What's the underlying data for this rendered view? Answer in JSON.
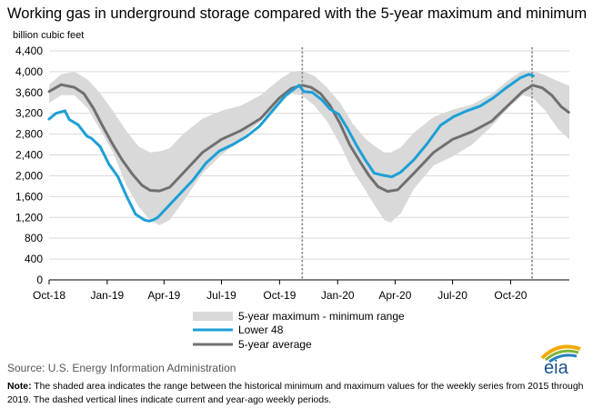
{
  "chart_data": {
    "type": "area",
    "title": "Working gas in underground storage compared with the 5-year maximum and minimum",
    "ylabel": "billion cubic feet",
    "xlabel": "",
    "ylim": [
      0,
      4400
    ],
    "yticks": [
      0,
      400,
      800,
      1200,
      1600,
      2000,
      2400,
      2800,
      3200,
      3600,
      4000,
      4400
    ],
    "yticklabels": [
      "0",
      "400",
      "800",
      "1,200",
      "1,600",
      "2,000",
      "2,400",
      "2,800",
      "3,200",
      "3,600",
      "4,000",
      "4,400"
    ],
    "xrange": [
      "2018-10-01",
      "2021-01-02"
    ],
    "xticks": [
      "2018-10-01",
      "2019-01-01",
      "2019-04-01",
      "2019-07-01",
      "2019-10-01",
      "2020-01-01",
      "2020-04-01",
      "2020-07-01",
      "2020-10-01"
    ],
    "xticklabels": [
      "Oct-18",
      "Jan-19",
      "Apr-19",
      "Jul-19",
      "Oct-19",
      "Jan-20",
      "Apr-20",
      "Jul-20",
      "Oct-20"
    ],
    "grid": "horizontal",
    "legend_position": "bottom-center",
    "vlines": [
      "2019-11-06",
      "2020-11-04"
    ],
    "colors": {
      "range": "#d9d9d9",
      "lower48": "#1d9fd6",
      "avg": "#707070",
      "vline": "#8a8a8a"
    },
    "range_band": {
      "name": "5-year maximum - minimum range",
      "x": [
        "2018-10-01",
        "2018-10-20",
        "2018-11-10",
        "2018-12-01",
        "2018-12-20",
        "2019-01-10",
        "2019-02-01",
        "2019-02-20",
        "2019-03-10",
        "2019-03-25",
        "2019-04-10",
        "2019-05-01",
        "2019-06-01",
        "2019-07-01",
        "2019-08-01",
        "2019-09-01",
        "2019-10-01",
        "2019-10-20",
        "2019-11-05",
        "2019-11-25",
        "2019-12-15",
        "2020-01-05",
        "2020-01-25",
        "2020-02-15",
        "2020-03-01",
        "2020-03-15",
        "2020-03-25",
        "2020-04-10",
        "2020-05-01",
        "2020-06-01",
        "2020-07-01",
        "2020-08-01",
        "2020-09-01",
        "2020-10-01",
        "2020-10-20",
        "2020-11-05",
        "2020-11-25",
        "2020-12-15",
        "2021-01-02"
      ],
      "max": [
        3750,
        3950,
        4000,
        3850,
        3600,
        3250,
        2850,
        2560,
        2450,
        2470,
        2530,
        2800,
        3100,
        3250,
        3350,
        3550,
        3850,
        4000,
        4020,
        3920,
        3700,
        3400,
        3000,
        2700,
        2560,
        2450,
        2450,
        2550,
        2830,
        3130,
        3270,
        3370,
        3570,
        3870,
        4020,
        4020,
        3930,
        3820,
        3730
      ],
      "min": [
        3400,
        3550,
        3550,
        3300,
        2900,
        2450,
        1800,
        1400,
        1150,
        1050,
        1150,
        1500,
        2050,
        2400,
        2700,
        3050,
        3400,
        3580,
        3550,
        3350,
        3050,
        2600,
        2100,
        1700,
        1400,
        1150,
        1100,
        1280,
        1750,
        2200,
        2370,
        2600,
        2950,
        3350,
        3550,
        3500,
        3250,
        2900,
        2700
      ]
    },
    "series": [
      {
        "name": "Lower 48",
        "x": [
          "2018-10-01",
          "2018-10-12",
          "2018-10-26",
          "2018-11-02",
          "2018-11-16",
          "2018-11-30",
          "2018-12-07",
          "2018-12-21",
          "2019-01-04",
          "2019-01-18",
          "2019-02-01",
          "2019-02-15",
          "2019-03-01",
          "2019-03-08",
          "2019-03-15",
          "2019-03-22",
          "2019-03-29",
          "2019-04-12",
          "2019-04-26",
          "2019-05-17",
          "2019-06-07",
          "2019-06-28",
          "2019-07-19",
          "2019-08-09",
          "2019-08-30",
          "2019-09-20",
          "2019-10-11",
          "2019-11-01",
          "2019-11-08",
          "2019-11-22",
          "2019-12-06",
          "2019-12-20",
          "2020-01-03",
          "2020-01-17",
          "2020-01-31",
          "2020-02-14",
          "2020-02-28",
          "2020-03-13",
          "2020-03-27",
          "2020-04-10",
          "2020-05-01",
          "2020-05-22",
          "2020-06-12",
          "2020-07-03",
          "2020-07-24",
          "2020-08-14",
          "2020-09-04",
          "2020-09-25",
          "2020-10-16",
          "2020-10-30",
          "2020-11-06"
        ],
        "y": [
          3090,
          3200,
          3250,
          3080,
          2980,
          2760,
          2720,
          2560,
          2220,
          1980,
          1600,
          1260,
          1150,
          1130,
          1150,
          1200,
          1290,
          1470,
          1650,
          1920,
          2250,
          2480,
          2600,
          2750,
          2950,
          3250,
          3550,
          3740,
          3620,
          3600,
          3470,
          3280,
          3180,
          2900,
          2580,
          2300,
          2050,
          2010,
          1980,
          2070,
          2310,
          2620,
          2970,
          3140,
          3250,
          3340,
          3500,
          3700,
          3880,
          3950,
          3920
        ]
      },
      {
        "name": "5-year average",
        "x": [
          "2018-10-01",
          "2018-10-20",
          "2018-11-10",
          "2018-11-25",
          "2018-12-10",
          "2018-12-25",
          "2019-01-10",
          "2019-01-25",
          "2019-02-10",
          "2019-02-25",
          "2019-03-10",
          "2019-03-25",
          "2019-04-10",
          "2019-05-01",
          "2019-06-01",
          "2019-07-01",
          "2019-08-01",
          "2019-09-01",
          "2019-10-01",
          "2019-10-20",
          "2019-11-06",
          "2019-11-20",
          "2019-12-05",
          "2019-12-20",
          "2020-01-05",
          "2020-01-20",
          "2020-02-05",
          "2020-02-20",
          "2020-03-05",
          "2020-03-20",
          "2020-04-05",
          "2020-05-01",
          "2020-06-01",
          "2020-07-01",
          "2020-08-01",
          "2020-09-01",
          "2020-10-01",
          "2020-10-20",
          "2020-11-05",
          "2020-11-20",
          "2020-12-05",
          "2020-12-20",
          "2021-01-01"
        ],
        "y": [
          3620,
          3750,
          3700,
          3580,
          3300,
          2950,
          2600,
          2300,
          2030,
          1820,
          1720,
          1710,
          1780,
          2050,
          2450,
          2700,
          2870,
          3100,
          3500,
          3680,
          3740,
          3700,
          3580,
          3350,
          3000,
          2600,
          2280,
          2000,
          1790,
          1700,
          1730,
          2050,
          2450,
          2700,
          2850,
          3050,
          3400,
          3620,
          3740,
          3690,
          3550,
          3330,
          3220
        ]
      }
    ],
    "legend": [
      "5-year maximum - minimum range",
      "Lower 48",
      "5-year average"
    ],
    "source": "Source:  U.S. Energy Information Administration",
    "note_label": "Note:",
    "note": "The shaded area indicates the range between the historical minimum and maximum values for the weekly series from 2015 through 2019. The dashed vertical lines indicate current and year-ago weekly periods.",
    "logo_text": "eia"
  }
}
